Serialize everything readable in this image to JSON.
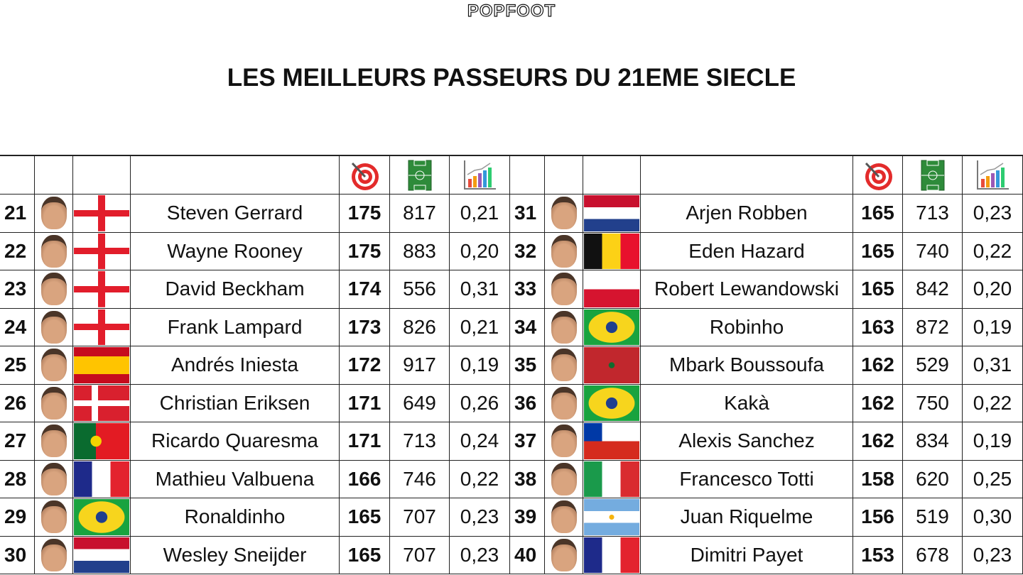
{
  "header": {
    "brand": "POPFOOT",
    "title": "LES MEILLEURS PASSEURS DU 21EME SIECLE"
  },
  "table": {
    "left": {
      "rows": [
        [
          21,
          "Steven Gerrard",
          175,
          817,
          "0,21"
        ],
        [
          22,
          "Wayne Rooney",
          175,
          883,
          "0,20"
        ],
        [
          23,
          "David Beckham",
          174,
          556,
          "0,31"
        ],
        [
          24,
          "Frank Lampard",
          173,
          826,
          "0,21"
        ],
        [
          25,
          "Andrés Iniesta",
          172,
          917,
          "0,19"
        ],
        [
          26,
          "Christian Eriksen",
          171,
          649,
          "0,26"
        ],
        [
          27,
          "Ricardo Quaresma",
          171,
          713,
          "0,24"
        ],
        [
          28,
          "Mathieu Valbuena",
          166,
          746,
          "0,22"
        ],
        [
          29,
          "Ronaldinho",
          165,
          707,
          "0,23"
        ],
        [
          30,
          "Wesley Sneijder",
          165,
          707,
          "0,23"
        ]
      ]
    },
    "right": {
      "rows": [
        [
          31,
          "Arjen Robben",
          165,
          713,
          "0,23"
        ],
        [
          32,
          "Eden Hazard",
          165,
          740,
          "0,22"
        ],
        [
          33,
          "Robert Lewandowski",
          165,
          842,
          "0,20"
        ],
        [
          34,
          "Robinho",
          163,
          872,
          "0,19"
        ],
        [
          35,
          "Mbark Boussoufa",
          162,
          529,
          "0,31"
        ],
        [
          36,
          "Kakà",
          162,
          750,
          "0,22"
        ],
        [
          37,
          "Alexis Sanchez",
          162,
          834,
          "0,19"
        ],
        [
          38,
          "Francesco Totti",
          158,
          620,
          "0,25"
        ],
        [
          39,
          "Juan Riquelme",
          156,
          519,
          "0,30"
        ],
        [
          40,
          "Dimitri Payet",
          153,
          678,
          "0,23"
        ]
      ]
    }
  }
}
